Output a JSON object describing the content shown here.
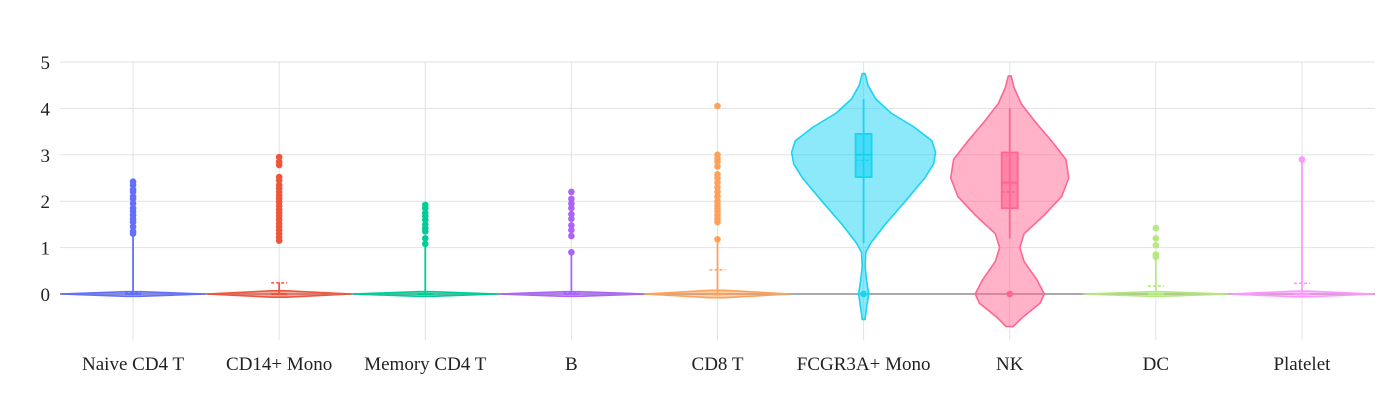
{
  "chart_data": {
    "type": "violin",
    "title": "",
    "xlabel": "",
    "ylabel": "",
    "ylim": [
      -1,
      5
    ],
    "yticks": [
      0,
      1,
      2,
      3,
      4,
      5
    ],
    "grid": true,
    "legend": "none",
    "series": [
      {
        "category": "Naive CD4 T",
        "color": "#636efa",
        "density": [
          [
            -0.05,
            0.1
          ],
          [
            0,
            1
          ],
          [
            0.05,
            0.1
          ]
        ],
        "range": [
          -0.05,
          0.05
        ],
        "box": {
          "q1": 0,
          "median": 0,
          "q3": 0,
          "mean": 0.04,
          "whisker_low": 0,
          "whisker_high": 1.3
        },
        "outliers": [
          1.3,
          1.35,
          1.45,
          1.55,
          1.62,
          1.7,
          1.78,
          1.85,
          1.95,
          2.05,
          2.1,
          2.2,
          2.25,
          2.35,
          2.42
        ]
      },
      {
        "category": "CD14+ Mono",
        "color": "#ef553b",
        "density": [
          [
            -0.07,
            0.1
          ],
          [
            0,
            1
          ],
          [
            0.07,
            0.1
          ]
        ],
        "range": [
          -0.07,
          0.07
        ],
        "box": {
          "q1": 0,
          "median": 0,
          "q3": 0,
          "mean": 0.24,
          "whisker_low": 0,
          "whisker_high": 0.25
        },
        "outliers": [
          1.15,
          1.22,
          1.3,
          1.38,
          1.45,
          1.52,
          1.6,
          1.68,
          1.75,
          1.82,
          1.9,
          1.98,
          2.05,
          2.12,
          2.2,
          2.28,
          2.35,
          2.45,
          2.52,
          2.78,
          2.85,
          2.95
        ]
      },
      {
        "category": "Memory CD4 T",
        "color": "#00cc96",
        "density": [
          [
            -0.05,
            0.1
          ],
          [
            0,
            1
          ],
          [
            0.05,
            0.1
          ]
        ],
        "range": [
          -0.05,
          0.05
        ],
        "box": {
          "q1": 0,
          "median": 0,
          "q3": 0,
          "mean": 0.05,
          "whisker_low": 0,
          "whisker_high": 1.05
        },
        "outliers": [
          1.08,
          1.2,
          1.35,
          1.42,
          1.5,
          1.6,
          1.68,
          1.75,
          1.85,
          1.92
        ]
      },
      {
        "category": "B",
        "color": "#ab63fa",
        "density": [
          [
            -0.05,
            0.1
          ],
          [
            0,
            1
          ],
          [
            0.05,
            0.1
          ]
        ],
        "range": [
          -0.05,
          0.05
        ],
        "box": {
          "q1": 0,
          "median": 0,
          "q3": 0,
          "mean": 0.04,
          "whisker_low": 0,
          "whisker_high": 0.9
        },
        "outliers": [
          0.9,
          1.25,
          1.38,
          1.48,
          1.62,
          1.72,
          1.85,
          1.95,
          2.05,
          2.2
        ]
      },
      {
        "category": "CD8 T",
        "color": "#ffa15a",
        "density": [
          [
            -0.08,
            0.1
          ],
          [
            0,
            1
          ],
          [
            0.08,
            0.1
          ]
        ],
        "range": [
          -0.08,
          0.08
        ],
        "box": {
          "q1": 0,
          "median": 0,
          "q3": 0,
          "mean": 0.52,
          "whisker_low": 0,
          "whisker_high": 1.2
        },
        "outliers": [
          1.18,
          1.55,
          1.62,
          1.7,
          1.78,
          1.85,
          1.92,
          2.0,
          2.1,
          2.2,
          2.3,
          2.4,
          2.5,
          2.58,
          2.75,
          2.85,
          2.92,
          3.0,
          4.05
        ]
      },
      {
        "category": "FCGR3A+ Mono",
        "color": "#19d3f3",
        "density": [
          [
            -0.55,
            0.02
          ],
          [
            -0.3,
            0.04
          ],
          [
            0,
            0.07
          ],
          [
            0.3,
            0.04
          ],
          [
            0.6,
            0.02
          ],
          [
            0.9,
            0.03
          ],
          [
            1.1,
            0.1
          ],
          [
            1.5,
            0.3
          ],
          [
            2.0,
            0.58
          ],
          [
            2.5,
            0.85
          ],
          [
            2.8,
            0.97
          ],
          [
            3.05,
            1.0
          ],
          [
            3.3,
            0.95
          ],
          [
            3.6,
            0.7
          ],
          [
            3.9,
            0.38
          ],
          [
            4.2,
            0.17
          ],
          [
            4.5,
            0.06
          ],
          [
            4.75,
            0.02
          ]
        ],
        "range": [
          -0.55,
          4.75
        ],
        "box": {
          "q1": 2.52,
          "median": 3.0,
          "q3": 3.45,
          "mean": 2.88,
          "whisker_low": 1.1,
          "whisker_high": 4.2
        },
        "outliers": [
          0
        ]
      },
      {
        "category": "NK",
        "color": "#ff6692",
        "density": [
          [
            -0.7,
            0.05
          ],
          [
            -0.5,
            0.18
          ],
          [
            -0.2,
            0.42
          ],
          [
            0,
            0.48
          ],
          [
            0.3,
            0.38
          ],
          [
            0.7,
            0.2
          ],
          [
            1.0,
            0.14
          ],
          [
            1.3,
            0.2
          ],
          [
            1.7,
            0.48
          ],
          [
            2.1,
            0.72
          ],
          [
            2.5,
            0.82
          ],
          [
            2.9,
            0.78
          ],
          [
            3.3,
            0.58
          ],
          [
            3.7,
            0.36
          ],
          [
            4.1,
            0.16
          ],
          [
            4.45,
            0.06
          ],
          [
            4.7,
            0.02
          ]
        ],
        "range": [
          -0.7,
          4.7
        ],
        "box": {
          "q1": 1.85,
          "median": 2.4,
          "q3": 3.05,
          "mean": 2.2,
          "whisker_low": 1.2,
          "whisker_high": 4.0
        },
        "outliers": [
          0
        ]
      },
      {
        "category": "DC",
        "color": "#b6e880",
        "density": [
          [
            -0.05,
            0.1
          ],
          [
            0,
            1
          ],
          [
            0.05,
            0.1
          ]
        ],
        "range": [
          -0.05,
          0.05
        ],
        "box": {
          "q1": 0,
          "median": 0,
          "q3": 0,
          "mean": 0.17,
          "whisker_low": 0,
          "whisker_high": 0.8
        },
        "outliers": [
          0.8,
          0.85,
          1.05,
          1.2,
          1.42
        ]
      },
      {
        "category": "Platelet",
        "color": "#ff97ff",
        "density": [
          [
            -0.06,
            0.1
          ],
          [
            0,
            1
          ],
          [
            0.06,
            0.1
          ]
        ],
        "range": [
          -0.06,
          0.06
        ],
        "box": {
          "q1": 0,
          "median": 0,
          "q3": 0,
          "mean": 0.23,
          "whisker_low": 0,
          "whisker_high": 2.9
        },
        "outliers": [
          2.9
        ]
      }
    ]
  }
}
